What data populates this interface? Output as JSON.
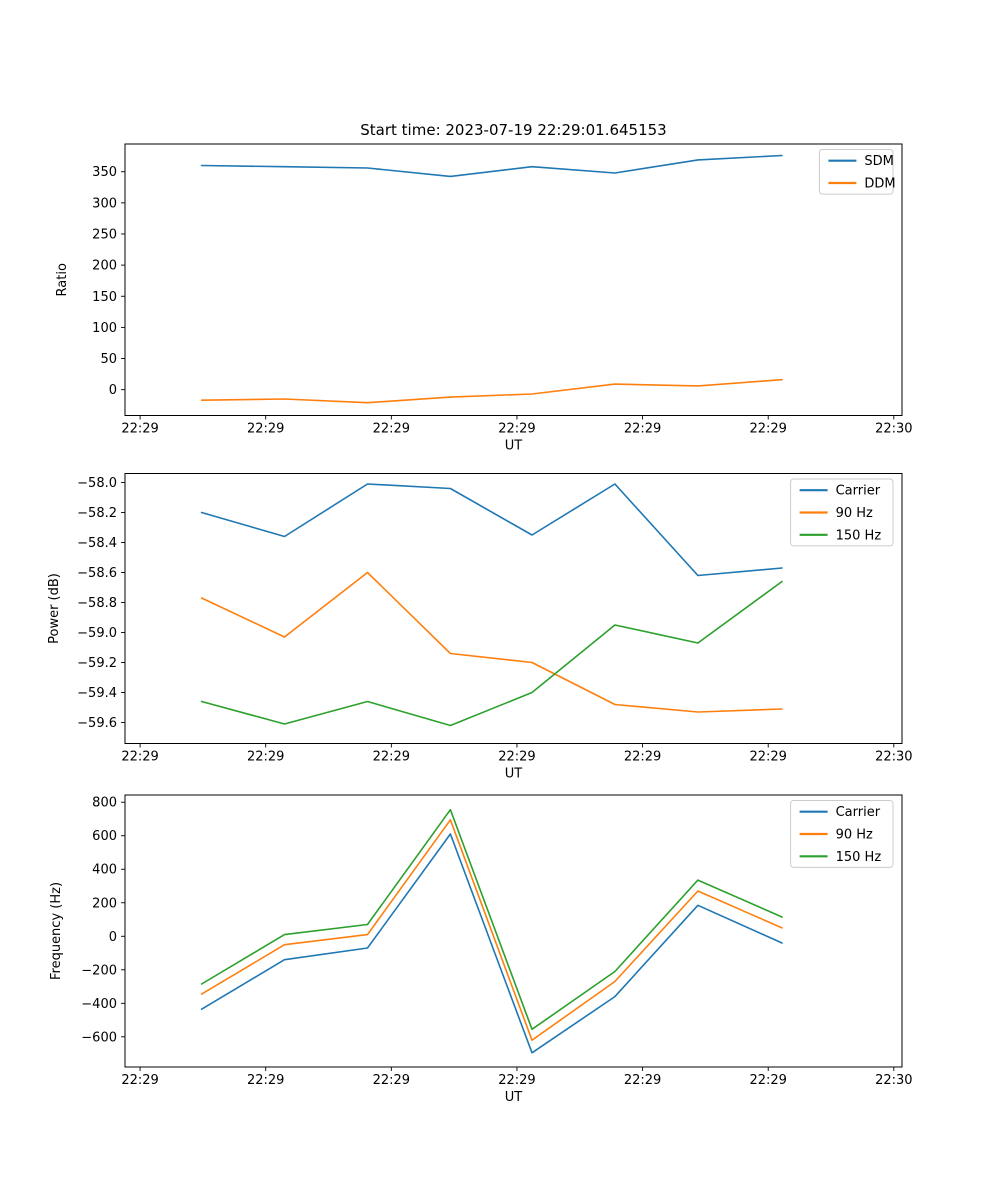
{
  "title": "Start time: 2023-07-19 22:29:01.645153",
  "palette": {
    "blue": "#1f77b4",
    "orange": "#ff7f0e",
    "green": "#2ca02c"
  },
  "x_axis": {
    "label": "UT",
    "tick_values_s": [
      0,
      10,
      20,
      30,
      40,
      50,
      60
    ],
    "tick_labels": [
      "22:29",
      "22:29",
      "22:29",
      "22:29",
      "22:29",
      "22:29",
      "22:30"
    ],
    "xlim_s": [
      -1.2,
      60.65
    ]
  },
  "sample_times_s": [
    4.9,
    11.5,
    18.1,
    24.7,
    31.2,
    37.8,
    44.4,
    51.1
  ],
  "chart_data": [
    {
      "type": "line",
      "title": "Start time: 2023-07-19 22:29:01.645153",
      "xlabel": "UT",
      "ylabel": "Ratio",
      "ylim": [
        -41.5,
        394.5
      ],
      "grid": false,
      "legend_position": "upper right",
      "ytick_values": [
        0,
        50,
        100,
        150,
        200,
        250,
        300,
        350
      ],
      "ytick_labels": [
        "0",
        "50",
        "100",
        "150",
        "200",
        "250",
        "300",
        "350"
      ],
      "x_tick_labels": [
        "22:29",
        "22:29",
        "22:29",
        "22:29",
        "22:29",
        "22:29",
        "22:30"
      ],
      "x_seconds": [
        4.9,
        11.5,
        18.1,
        24.7,
        31.2,
        37.8,
        44.4,
        51.1
      ],
      "series": [
        {
          "name": "SDM",
          "color": "#1f77b4",
          "values": [
            360,
            358,
            356,
            342.5,
            358,
            348,
            369,
            376
          ]
        },
        {
          "name": "DDM",
          "color": "#ff7f0e",
          "values": [
            -17,
            -15,
            -21,
            -12,
            -7,
            9,
            6,
            16
          ]
        }
      ]
    },
    {
      "type": "line",
      "title": "",
      "xlabel": "UT",
      "ylabel": "Power (dB)",
      "ylim": [
        -59.74,
        -57.94
      ],
      "grid": false,
      "legend_position": "upper right",
      "ytick_values": [
        -59.6,
        -59.4,
        -59.2,
        -59.0,
        -58.8,
        -58.6,
        -58.4,
        -58.2,
        -58.0
      ],
      "ytick_labels": [
        "−59.6",
        "−59.4",
        "−59.2",
        "−59.0",
        "−58.8",
        "−58.6",
        "−58.4",
        "−58.2",
        "−58.0"
      ],
      "x_tick_labels": [
        "22:29",
        "22:29",
        "22:29",
        "22:29",
        "22:29",
        "22:29",
        "22:30"
      ],
      "x_seconds": [
        4.9,
        11.5,
        18.1,
        24.7,
        31.2,
        37.8,
        44.4,
        51.1
      ],
      "series": [
        {
          "name": "Carrier",
          "color": "#1f77b4",
          "values": [
            -58.2,
            -58.36,
            -58.01,
            -58.04,
            -58.35,
            -58.01,
            -58.62,
            -58.57
          ]
        },
        {
          "name": "90 Hz",
          "color": "#ff7f0e",
          "values": [
            -58.77,
            -59.03,
            -58.6,
            -59.14,
            -59.2,
            -59.48,
            -59.53,
            -59.51
          ]
        },
        {
          "name": "150 Hz",
          "color": "#2ca02c",
          "values": [
            -59.46,
            -59.61,
            -59.46,
            -59.62,
            -59.4,
            -58.95,
            -59.07,
            -58.66
          ]
        }
      ]
    },
    {
      "type": "line",
      "title": "",
      "xlabel": "UT",
      "ylabel": "Frequency (Hz)",
      "ylim": [
        -780,
        843
      ],
      "grid": false,
      "legend_position": "upper right",
      "ytick_values": [
        -600,
        -400,
        -200,
        0,
        200,
        400,
        600,
        800
      ],
      "ytick_labels": [
        "−600",
        "−400",
        "−200",
        "0",
        "200",
        "400",
        "600",
        "800"
      ],
      "x_tick_labels": [
        "22:29",
        "22:29",
        "22:29",
        "22:29",
        "22:29",
        "22:29",
        "22:30"
      ],
      "x_seconds": [
        4.9,
        11.5,
        18.1,
        24.7,
        31.2,
        37.8,
        44.4,
        51.1
      ],
      "series": [
        {
          "name": "Carrier",
          "color": "#1f77b4",
          "values": [
            -435,
            -140,
            -70,
            610,
            -695,
            -360,
            185,
            -40
          ]
        },
        {
          "name": "90 Hz",
          "color": "#ff7f0e",
          "values": [
            -345,
            -50,
            10,
            695,
            -620,
            -270,
            270,
            50
          ]
        },
        {
          "name": "150 Hz",
          "color": "#2ca02c",
          "values": [
            -285,
            10,
            70,
            755,
            -555,
            -210,
            335,
            115
          ]
        }
      ]
    }
  ]
}
